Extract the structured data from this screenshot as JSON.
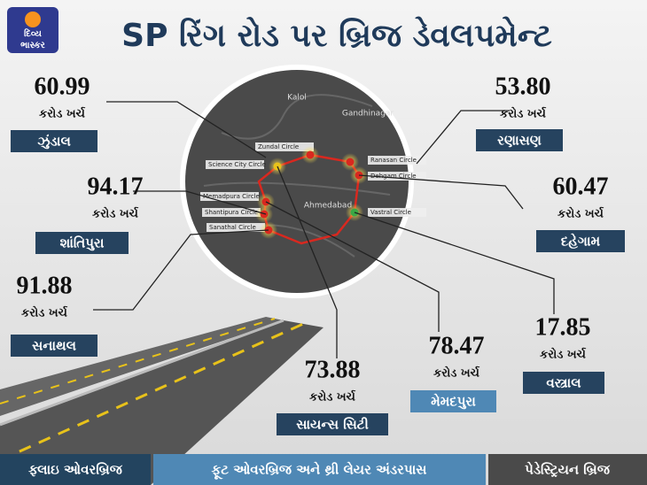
{
  "logo": {
    "line1": "દિવ્ય",
    "line2": "ભાસ્કર"
  },
  "title": "SP રિંગ રોડ પર બ્રિજ ડેવલપમેન્ટ",
  "locations": [
    {
      "value": "60.99",
      "unit": "કરોડ ખર્ચ",
      "name": "ઝુંડાલ"
    },
    {
      "value": "53.80",
      "unit": "કરોડ ખર્ચ",
      "name": "રણાસણ"
    },
    {
      "value": "94.17",
      "unit": "કરોડ ખર્ચ",
      "name": "શાંતિપુરા"
    },
    {
      "value": "60.47",
      "unit": "કરોડ ખર્ચ",
      "name": "દહેગામ"
    },
    {
      "value": "91.88",
      "unit": "કરોડ ખર્ચ",
      "name": "સનાથલ"
    },
    {
      "value": "17.85",
      "unit": "કરોડ ખર્ચ",
      "name": "વસ્ત્રાલ"
    },
    {
      "value": "73.88",
      "unit": "કરોડ ખર્ચ",
      "name": "સાયન્સ સિટી"
    },
    {
      "value": "78.47",
      "unit": "કરોડ ખર્ચ",
      "name": "મેમદપુરા"
    }
  ],
  "map": {
    "places": [
      "Kalol",
      "Gandhinagar",
      "Ahmedabad"
    ],
    "circles": [
      "Zundal Circle",
      "Ranasan Circle",
      "Science City Circle",
      "Dehgam Circle",
      "Memadpura Circle",
      "Shantipura Circle",
      "Sanathal Circle",
      "Vastral Circle"
    ]
  },
  "footer": [
    "ફ્લાઇ ઓવરબ્રિજ",
    "ફૂટ ઓવરબ્રિજ અને થ્રી લેયર અંડરપાસ",
    "પેડેસ્ટ્રિયન બ્રિજ"
  ]
}
